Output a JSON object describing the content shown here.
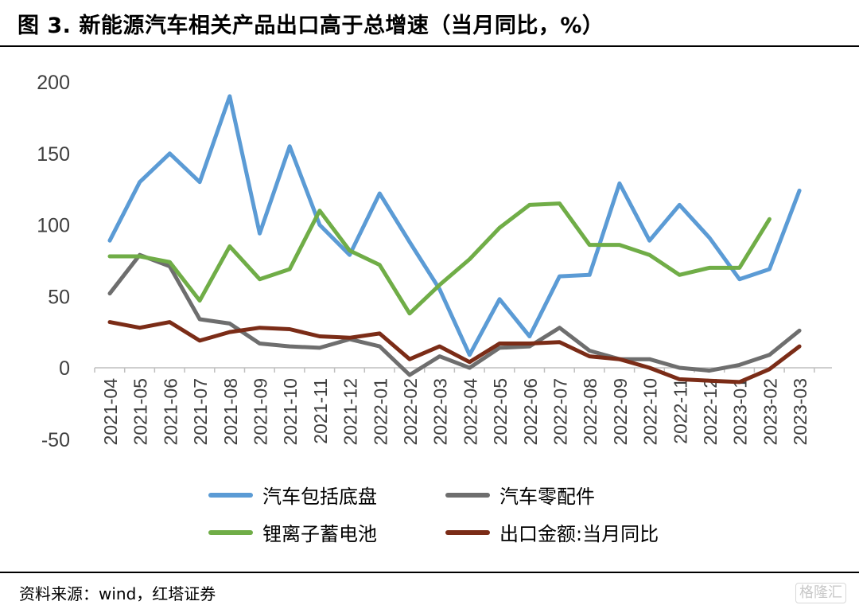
{
  "header": {
    "title": "图 3. 新能源汽车相关产品出口高于总增速（当月同比，%）"
  },
  "footer": {
    "source": "资料来源：wind，红塔证券",
    "watermark": "格隆汇"
  },
  "chart_data": {
    "type": "line",
    "title": "",
    "xlabel": "",
    "ylabel": "",
    "ylim": [
      -50,
      200
    ],
    "yticks": [
      -50,
      0,
      50,
      100,
      150,
      200
    ],
    "grid": false,
    "legend_position": "bottom",
    "categories": [
      "2021-04",
      "2021-05",
      "2021-06",
      "2021-07",
      "2021-08",
      "2021-09",
      "2021-10",
      "2021-11",
      "2021-12",
      "2022-01",
      "2022-02",
      "2022-03",
      "2022-04",
      "2022-05",
      "2022-06",
      "2022-07",
      "2022-08",
      "2022-09",
      "2022-10",
      "2022-11",
      "2022-12",
      "2023-01",
      "2023-02",
      "2023-03"
    ],
    "series": [
      {
        "name": "汽车包括底盘",
        "color": "#5B9BD5",
        "values": [
          89,
          130,
          150,
          130,
          190,
          94,
          155,
          100,
          79,
          122,
          88,
          55,
          9,
          48,
          22,
          64,
          65,
          129,
          89,
          114,
          91,
          62,
          69,
          124
        ]
      },
      {
        "name": "汽车零配件",
        "color": "#6E6E6E",
        "values": [
          52,
          79,
          71,
          34,
          31,
          17,
          15,
          14,
          20,
          15,
          -5,
          8,
          0,
          14,
          15,
          28,
          12,
          6,
          6,
          0,
          -2,
          2,
          9,
          26
        ]
      },
      {
        "name": "锂离子蓄电池",
        "color": "#70AD47",
        "values": [
          78,
          78,
          74,
          47,
          85,
          62,
          69,
          110,
          82,
          72,
          38,
          58,
          76,
          98,
          114,
          115,
          86,
          86,
          79,
          65,
          70,
          70,
          104,
          null
        ]
      },
      {
        "name": "出口金额:当月同比",
        "color": "#7B2C17",
        "values": [
          32,
          28,
          32,
          19,
          25,
          28,
          27,
          22,
          21,
          24,
          6,
          15,
          4,
          17,
          17,
          18,
          8,
          6,
          0,
          -8,
          -9,
          -10,
          -1,
          15
        ]
      }
    ]
  }
}
